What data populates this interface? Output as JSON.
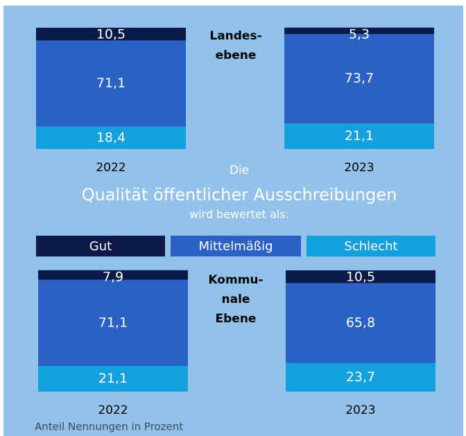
{
  "title_lines": [
    "Die",
    "Qualität  öffentlicher Ausschreibungen",
    "wird bewertet als:"
  ],
  "note": "Anteil Nennungen in Prozent",
  "chart_data": [
    {
      "type": "stacked_bar",
      "title_lines": [
        "Landes-",
        "ebene"
      ],
      "categories": [
        "2022",
        "2023"
      ],
      "ylim": [
        0,
        100
      ],
      "series": [
        {
          "name": "Gut",
          "color": "#0b1a4b",
          "values": [
            10.5,
            5.3
          ],
          "value_labels": [
            "10,5",
            "5,3"
          ]
        },
        {
          "name": "Mittelmäßig",
          "color": "#2b60c5",
          "values": [
            71.1,
            73.7
          ],
          "value_labels": [
            "71,1",
            "73,7"
          ]
        },
        {
          "name": "Schlecht",
          "color": "#12a1dd",
          "values": [
            18.4,
            21.1
          ],
          "value_labels": [
            "18,4",
            "21,1"
          ]
        }
      ]
    },
    {
      "type": "stacked_bar",
      "title_lines": [
        "Kommu-",
        "nale",
        "Ebene"
      ],
      "categories": [
        "2022",
        "2023"
      ],
      "ylim": [
        0,
        100
      ],
      "series": [
        {
          "name": "Gut",
          "color": "#0b1a4b",
          "values": [
            7.9,
            10.5
          ],
          "value_labels": [
            "7,9",
            "10,5"
          ]
        },
        {
          "name": "Mittelmäßig",
          "color": "#2b60c5",
          "values": [
            71.1,
            65.8
          ],
          "value_labels": [
            "71,1",
            "65,8"
          ]
        },
        {
          "name": "Schlecht",
          "color": "#12a1dd",
          "values": [
            21.1,
            23.7
          ],
          "value_labels": [
            "21,1",
            "23,7"
          ]
        }
      ]
    }
  ]
}
